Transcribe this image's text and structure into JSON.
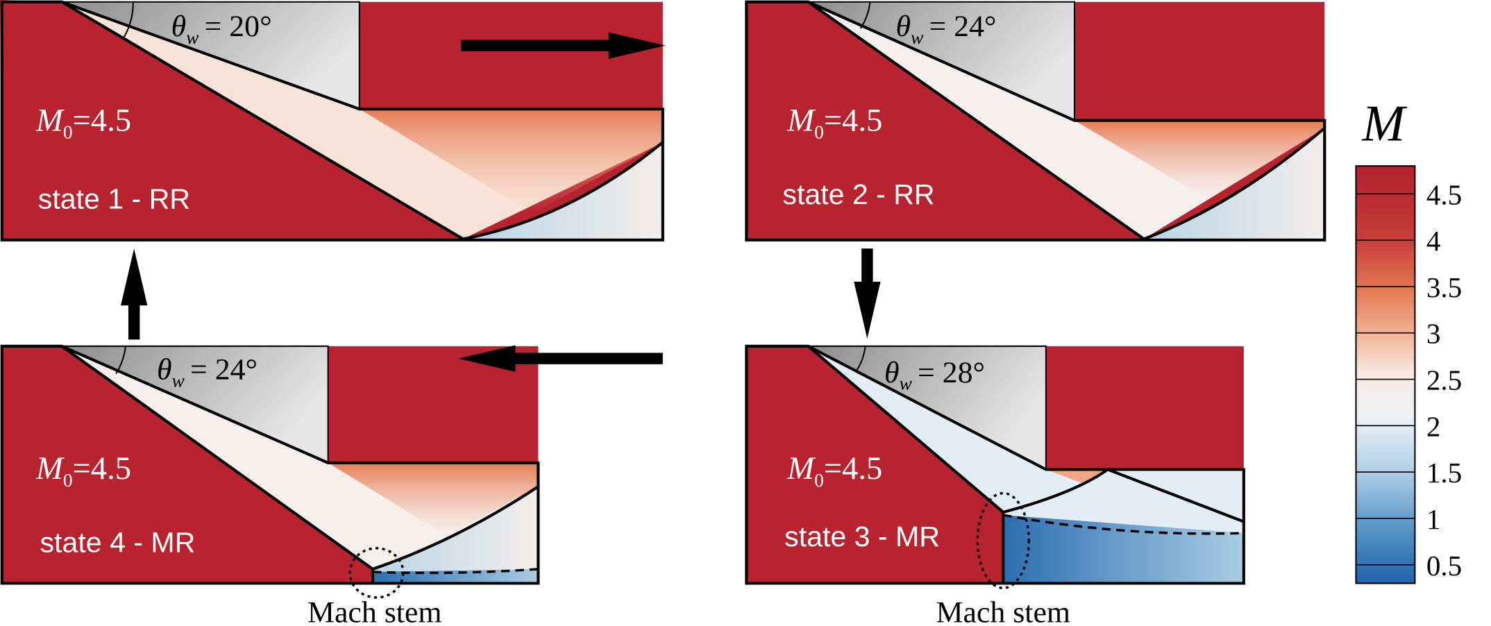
{
  "panels": [
    {
      "theta_symbol": "θ",
      "theta_subscript": "w",
      "theta_value": "= 20°",
      "mach_symbol": "M",
      "mach_subscript": "0",
      "mach_value": "=4.5",
      "state": "state 1 - RR"
    },
    {
      "theta_symbol": "θ",
      "theta_subscript": "w",
      "theta_value": "= 24°",
      "mach_symbol": "M",
      "mach_subscript": "0",
      "mach_value": "=4.5",
      "state": "state 2 - RR"
    },
    {
      "theta_symbol": "θ",
      "theta_subscript": "w",
      "theta_value": "= 28°",
      "mach_symbol": "M",
      "mach_subscript": "0",
      "mach_value": "=4.5",
      "state": "state 3 - MR"
    },
    {
      "theta_symbol": "θ",
      "theta_subscript": "w",
      "theta_value": "= 24°",
      "mach_symbol": "M",
      "mach_subscript": "0",
      "mach_value": "=4.5",
      "state": "state 4 - MR"
    }
  ],
  "annotations": [
    "Mach stem",
    "Mach stem"
  ],
  "colorbar": {
    "title": "M",
    "lim": [
      0.3,
      4.8
    ],
    "ticks": [
      0.5,
      1,
      1.5,
      2,
      2.5,
      3,
      3.5,
      4,
      4.5
    ]
  }
}
